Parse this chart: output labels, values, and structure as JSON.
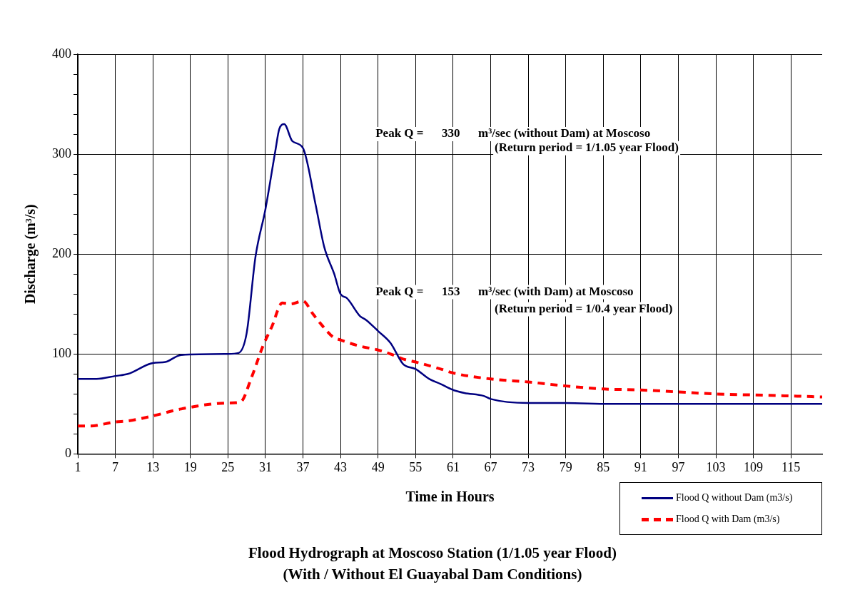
{
  "chart_data": {
    "type": "line",
    "title": "Flood Hydrograph at Moscoso Station (1/1.05 year Flood)",
    "subtitle": "(With / Without El Guayabal Dam Conditions)",
    "xlabel": "Time in Hours",
    "ylabel": "Discharge (m³/s)",
    "xlim": [
      1,
      120
    ],
    "xticks": [
      1,
      7,
      13,
      19,
      25,
      31,
      37,
      43,
      49,
      55,
      61,
      67,
      73,
      79,
      85,
      91,
      97,
      103,
      109,
      115
    ],
    "ylim": [
      0,
      400
    ],
    "yticks": [
      0,
      {
        "value": 20,
        "label": null
      },
      {
        "value": 40,
        "label": null
      },
      {
        "value": 60,
        "label": null
      },
      {
        "value": 80,
        "label": null
      },
      100,
      {
        "value": 120,
        "label": null
      },
      {
        "value": 140,
        "label": null
      },
      {
        "value": 160,
        "label": null
      },
      {
        "value": 180,
        "label": null
      },
      200,
      {
        "value": 220,
        "label": null
      },
      {
        "value": 240,
        "label": null
      },
      {
        "value": 260,
        "label": null
      },
      {
        "value": 280,
        "label": null
      },
      300,
      {
        "value": 320,
        "label": null
      },
      {
        "value": 340,
        "label": null
      },
      {
        "value": 360,
        "label": null
      },
      {
        "value": 380,
        "label": null
      },
      400
    ],
    "grid": true,
    "legend": "bottom right",
    "marker": "none",
    "annotations": [
      "Peak Q =      330      m³/sec (without Dam) at Moscoso",
      "(Return period = 1/1.05 year Flood)",
      "Peak Q =      153      m³/sec (with Dam) at Moscoso",
      "(Return period = 1/0.4 year Flood)"
    ],
    "series": [
      {
        "name": "Flood Q without Dam (m3/s)",
        "color": "#000080",
        "line_style": "solid",
        "x": [
          1,
          4,
          7,
          9,
          13,
          15,
          17.5,
          25,
          26.7,
          28,
          29.4,
          31,
          32.6,
          33.2,
          34,
          35.3,
          37,
          39,
          40.4,
          42,
          43,
          44,
          46.1,
          47.1,
          49,
          51,
          53,
          55,
          57.2,
          59,
          61,
          62.8,
          65.9,
          67,
          73,
          79,
          86,
          120
        ],
        "values": [
          75,
          75,
          78,
          80,
          91,
          92,
          99,
          100,
          101,
          121,
          197,
          245,
          304,
          325,
          330,
          313,
          306,
          250,
          207,
          180,
          160,
          156,
          138,
          134,
          123,
          111,
          90,
          85,
          75,
          70,
          64,
          61,
          58,
          55,
          51,
          51,
          50,
          50
        ]
      },
      {
        "name": "Flood Q with Dam (m3/s)",
        "color": "#ff0000",
        "line_style": "dashed",
        "x": [
          1,
          3,
          7,
          9,
          13,
          17.5,
          25,
          27,
          28.8,
          30.6,
          32,
          33.7,
          35,
          37,
          38.6,
          40,
          41.8,
          43,
          46,
          49,
          51,
          53,
          55,
          59,
          61,
          67,
          73,
          79,
          85,
          91,
          97,
          103,
          109,
          115,
          120
        ],
        "values": [
          28,
          28,
          32,
          33,
          38,
          45,
          51,
          52,
          77,
          108,
          127,
          151,
          150,
          153,
          140,
          129,
          117,
          114,
          108,
          104,
          100,
          95,
          92,
          85,
          81,
          75,
          72,
          68,
          65,
          64,
          62,
          60,
          59,
          58,
          57
        ]
      }
    ]
  }
}
